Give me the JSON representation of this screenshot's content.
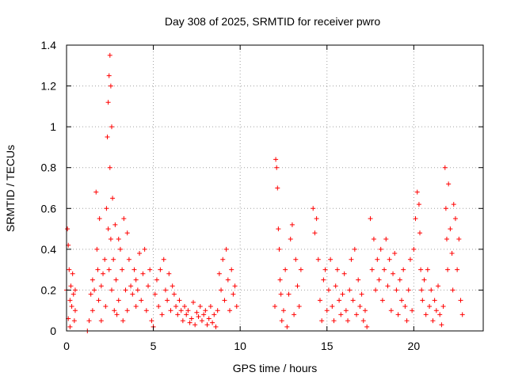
{
  "chart_data": {
    "type": "scatter",
    "title": "Day 308 of 2025, SRMTID for receiver pwro",
    "xlabel": "GPS time / hours",
    "ylabel": "SRMTID / TECUs",
    "xlim": [
      0,
      24
    ],
    "ylim": [
      0,
      1.4
    ],
    "xticks": [
      0,
      5,
      10,
      15,
      20
    ],
    "yticks": [
      0,
      0.2,
      0.4,
      0.6,
      0.8,
      1,
      1.2,
      1.4
    ],
    "xtick_labels": [
      "0",
      "5",
      "10",
      "15",
      "20"
    ],
    "ytick_labels": [
      "0",
      "0.2",
      "0.4",
      "0.6",
      "0.8",
      "1",
      "1.2",
      "1.4"
    ],
    "grid": true,
    "marker": "+",
    "marker_color": "#ff0000",
    "series": [
      {
        "name": "SRMTID",
        "x": [
          0.0,
          0.05,
          0.1,
          0.1,
          0.15,
          0.2,
          0.2,
          0.25,
          0.3,
          0.35,
          0.4,
          0.45,
          0.5,
          0.5,
          1.2,
          1.3,
          1.4,
          1.5,
          1.5,
          1.6,
          1.7,
          1.75,
          1.8,
          1.85,
          1.9,
          2.0,
          2.0,
          2.1,
          2.2,
          2.25,
          2.3,
          2.35,
          2.4,
          2.4,
          2.45,
          2.45,
          2.5,
          2.5,
          2.55,
          2.55,
          2.6,
          2.6,
          2.65,
          2.7,
          2.75,
          2.8,
          2.85,
          2.9,
          3.0,
          3.0,
          3.1,
          3.2,
          3.25,
          3.3,
          3.4,
          3.5,
          3.5,
          3.6,
          3.7,
          3.8,
          3.9,
          4.0,
          4.0,
          4.1,
          4.2,
          4.3,
          4.4,
          4.5,
          4.6,
          4.7,
          4.8,
          4.9,
          5.0,
          5.1,
          5.2,
          5.3,
          5.4,
          5.5,
          5.6,
          5.7,
          5.8,
          5.9,
          6.0,
          6.1,
          6.2,
          6.3,
          6.4,
          6.5,
          6.6,
          6.7,
          6.8,
          6.9,
          7.0,
          7.1,
          7.2,
          7.3,
          7.4,
          7.5,
          7.6,
          7.7,
          7.8,
          7.9,
          8.0,
          8.1,
          8.2,
          8.3,
          8.4,
          8.5,
          8.6,
          8.7,
          8.8,
          8.9,
          9.0,
          9.1,
          9.2,
          9.3,
          9.4,
          9.5,
          9.6,
          9.7,
          9.8,
          12.0,
          12.05,
          12.1,
          12.15,
          12.2,
          12.25,
          12.3,
          12.35,
          12.4,
          12.5,
          12.6,
          12.7,
          12.8,
          12.9,
          13.0,
          13.1,
          13.2,
          13.3,
          13.4,
          13.5,
          14.2,
          14.3,
          14.4,
          14.5,
          14.6,
          14.7,
          14.8,
          14.9,
          15.0,
          15.1,
          15.2,
          15.3,
          15.4,
          15.5,
          15.6,
          15.7,
          15.8,
          15.9,
          16.0,
          16.1,
          16.2,
          16.3,
          16.4,
          16.5,
          16.6,
          16.7,
          16.8,
          16.9,
          17.0,
          17.1,
          17.2,
          17.3,
          17.5,
          17.6,
          17.7,
          17.8,
          17.9,
          18.0,
          18.1,
          18.2,
          18.3,
          18.4,
          18.5,
          18.6,
          18.7,
          18.8,
          18.9,
          19.0,
          19.1,
          19.2,
          19.3,
          19.4,
          19.5,
          19.6,
          19.7,
          19.8,
          19.9,
          20.0,
          20.1,
          20.2,
          20.3,
          20.35,
          20.4,
          20.45,
          20.5,
          20.6,
          20.7,
          20.8,
          20.9,
          21.0,
          21.1,
          21.2,
          21.3,
          21.4,
          21.5,
          21.6,
          21.7,
          21.8,
          21.85,
          21.9,
          21.95,
          22.0,
          22.1,
          22.2,
          22.25,
          22.3,
          22.4,
          22.5,
          22.6,
          22.7,
          22.8
        ],
        "y": [
          0.2,
          0.5,
          0.42,
          0.06,
          0.3,
          0.15,
          0.02,
          0.22,
          0.12,
          0.28,
          0.18,
          0.05,
          0.1,
          0.2,
          0.0,
          0.05,
          0.18,
          0.25,
          0.1,
          0.2,
          0.68,
          0.4,
          0.3,
          0.15,
          0.55,
          0.22,
          0.05,
          0.28,
          0.35,
          0.12,
          0.6,
          0.95,
          1.12,
          0.5,
          1.25,
          0.3,
          1.35,
          0.8,
          1.2,
          0.45,
          1.0,
          0.2,
          0.65,
          0.35,
          0.1,
          0.52,
          0.25,
          0.08,
          0.45,
          0.15,
          0.4,
          0.3,
          0.05,
          0.55,
          0.2,
          0.48,
          0.1,
          0.35,
          0.22,
          0.18,
          0.3,
          0.25,
          0.12,
          0.2,
          0.38,
          0.15,
          0.28,
          0.4,
          0.1,
          0.22,
          0.3,
          0.05,
          0.02,
          0.18,
          0.25,
          0.12,
          0.3,
          0.08,
          0.35,
          0.2,
          0.15,
          0.28,
          0.1,
          0.22,
          0.18,
          0.12,
          0.08,
          0.15,
          0.1,
          0.05,
          0.12,
          0.08,
          0.1,
          0.04,
          0.06,
          0.14,
          0.03,
          0.09,
          0.07,
          0.12,
          0.05,
          0.08,
          0.1,
          0.03,
          0.06,
          0.12,
          0.04,
          0.08,
          0.02,
          0.1,
          0.28,
          0.2,
          0.35,
          0.15,
          0.4,
          0.25,
          0.1,
          0.3,
          0.18,
          0.22,
          0.12,
          0.12,
          0.84,
          0.8,
          0.7,
          0.5,
          0.4,
          0.25,
          0.18,
          0.05,
          0.1,
          0.3,
          0.02,
          0.18,
          0.45,
          0.52,
          0.08,
          0.35,
          0.22,
          0.12,
          0.3,
          0.6,
          0.48,
          0.55,
          0.35,
          0.15,
          0.05,
          0.25,
          0.3,
          0.1,
          0.2,
          0.35,
          0.12,
          0.05,
          0.22,
          0.3,
          0.15,
          0.08,
          0.18,
          0.28,
          0.1,
          0.05,
          0.2,
          0.35,
          0.15,
          0.4,
          0.08,
          0.25,
          0.12,
          0.18,
          0.05,
          0.1,
          0.02,
          0.55,
          0.3,
          0.45,
          0.2,
          0.35,
          0.25,
          0.4,
          0.15,
          0.3,
          0.45,
          0.22,
          0.35,
          0.1,
          0.28,
          0.38,
          0.2,
          0.08,
          0.25,
          0.15,
          0.3,
          0.12,
          0.05,
          0.2,
          0.35,
          0.1,
          0.4,
          0.55,
          0.68,
          0.62,
          0.48,
          0.3,
          0.2,
          0.15,
          0.25,
          0.08,
          0.3,
          0.12,
          0.2,
          0.05,
          0.15,
          0.1,
          0.22,
          0.08,
          0.03,
          0.12,
          0.8,
          0.6,
          0.45,
          0.3,
          0.72,
          0.5,
          0.38,
          0.2,
          0.62,
          0.55,
          0.3,
          0.45,
          0.15,
          0.08
        ]
      }
    ]
  }
}
